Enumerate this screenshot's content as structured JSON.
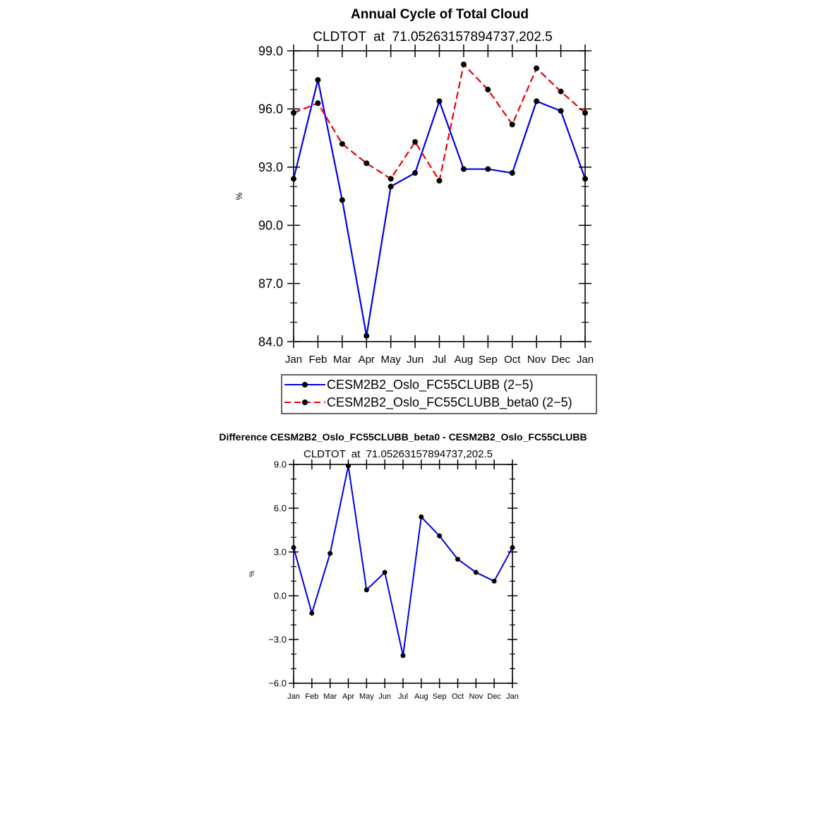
{
  "chart_data": [
    {
      "type": "line",
      "title": "Annual Cycle of Total Cloud",
      "subtitle": "CLDTOT  at  71.05263157894737,202.5",
      "xlabel": "",
      "ylabel": "%",
      "categories": [
        "Jan",
        "Feb",
        "Mar",
        "Apr",
        "May",
        "Jun",
        "Jul",
        "Aug",
        "Sep",
        "Oct",
        "Nov",
        "Dec",
        "Jan"
      ],
      "ylim": [
        84.0,
        99.0
      ],
      "yticks": [
        "84.0",
        "87.0",
        "90.0",
        "93.0",
        "96.0",
        "99.0"
      ],
      "ytick_values": [
        84,
        87,
        90,
        93,
        96,
        99
      ],
      "series": [
        {
          "name": "CESM2B2_Oslo_FC55CLUBB (2-5)",
          "color": "#0000ee",
          "dash": "solid",
          "values": [
            92.4,
            97.5,
            91.3,
            84.3,
            92.0,
            92.7,
            96.4,
            92.9,
            92.9,
            92.7,
            96.4,
            95.9,
            92.4
          ]
        },
        {
          "name": "CESM2B2_Oslo_FC55CLUBB_beta0 (2-5)",
          "color": "#ee0000",
          "dash": "dashed",
          "values": [
            95.8,
            96.3,
            94.2,
            93.2,
            92.4,
            94.3,
            92.3,
            98.3,
            97.0,
            95.2,
            98.1,
            96.9,
            95.8
          ]
        }
      ],
      "legend": {
        "labels": [
          "CESM2B2_Oslo_FC55CLUBB (2−5)",
          "CESM2B2_Oslo_FC55CLUBB_beta0 (2−5)"
        ],
        "position": "below"
      }
    },
    {
      "type": "line",
      "title": "Difference CESM2B2_Oslo_FC55CLUBB_beta0 - CESM2B2_Oslo_FC55CLUBB",
      "subtitle": "CLDTOT  at  71.05263157894737,202.5",
      "xlabel": "",
      "ylabel": "%",
      "categories": [
        "Jan",
        "Feb",
        "Mar",
        "Apr",
        "May",
        "Jun",
        "Jul",
        "Aug",
        "Sep",
        "Oct",
        "Nov",
        "Dec",
        "Jan"
      ],
      "ylim": [
        -6.0,
        9.0
      ],
      "yticks": [
        "−6.0",
        "−3.0",
        "0.0",
        "3.0",
        "6.0",
        "9.0"
      ],
      "ytick_values": [
        -6,
        -3,
        0,
        3,
        6,
        9
      ],
      "series": [
        {
          "name": "Difference",
          "color": "#0000ee",
          "dash": "solid",
          "values": [
            3.3,
            -1.2,
            2.9,
            8.9,
            0.4,
            1.6,
            -4.1,
            5.4,
            4.1,
            2.5,
            1.6,
            1.0,
            3.3
          ]
        }
      ]
    }
  ]
}
